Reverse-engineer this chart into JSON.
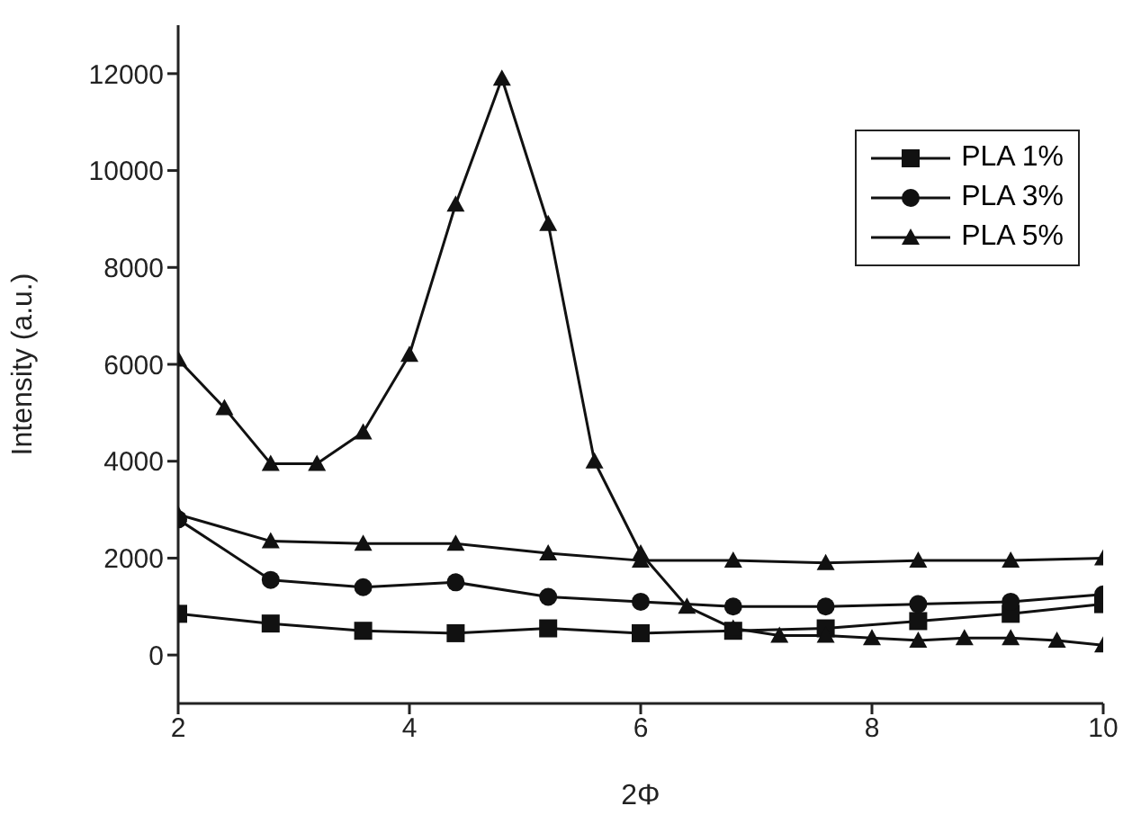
{
  "chart_data": {
    "type": "line",
    "xlabel": "2Φ",
    "ylabel": "Intensity (a.u.)",
    "xlim": [
      2,
      10
    ],
    "xticks": [
      2,
      4,
      6,
      8,
      10
    ],
    "ylim": [
      -1000,
      13000
    ],
    "yticks": [
      0,
      2000,
      4000,
      6000,
      8000,
      10000,
      12000
    ],
    "legend": "top right",
    "line_style": "solid",
    "series": [
      {
        "name": "PLA 1%",
        "color": "#111111",
        "marker": "square",
        "x": [
          2,
          2.8,
          3.6,
          4.4,
          5.2,
          6,
          6.8,
          7.6,
          8.4,
          9.2,
          10
        ],
        "values": [
          850,
          650,
          500,
          450,
          550,
          450,
          500,
          550,
          700,
          850,
          1050
        ]
      },
      {
        "name": "PLA 3%",
        "color": "#111111",
        "marker": "circle",
        "x": [
          2,
          2.8,
          3.6,
          4.4,
          5.2,
          6,
          6.8,
          7.6,
          8.4,
          9.2,
          10
        ],
        "values": [
          2800,
          1550,
          1400,
          1500,
          1200,
          1100,
          1000,
          1000,
          1050,
          1100,
          1250
        ]
      },
      {
        "name": "PLA 5%",
        "color": "#111111",
        "marker": "triangle",
        "x": [
          2,
          2.8,
          3.6,
          4.4,
          5.2,
          6,
          6.8,
          7.6,
          8.4,
          9.2,
          10
        ],
        "values": [
          2900,
          2350,
          2300,
          2300,
          2100,
          1950,
          1950,
          1900,
          1950,
          1950,
          2000
        ]
      },
      {
        "color": "#111111",
        "marker": "triangle",
        "x": [
          2,
          2.4,
          2.8,
          3.2,
          3.6,
          4,
          4.4,
          4.8,
          5.2,
          5.6,
          6,
          6.4,
          6.8,
          7.2,
          7.6,
          8,
          8.4,
          8.8,
          9.2,
          9.6,
          10
        ],
        "values": [
          6100,
          5100,
          3950,
          3950,
          4600,
          6200,
          9300,
          11900,
          8900,
          4000,
          2100,
          1000,
          550,
          400,
          400,
          350,
          300,
          350,
          350,
          300,
          200
        ]
      }
    ]
  }
}
